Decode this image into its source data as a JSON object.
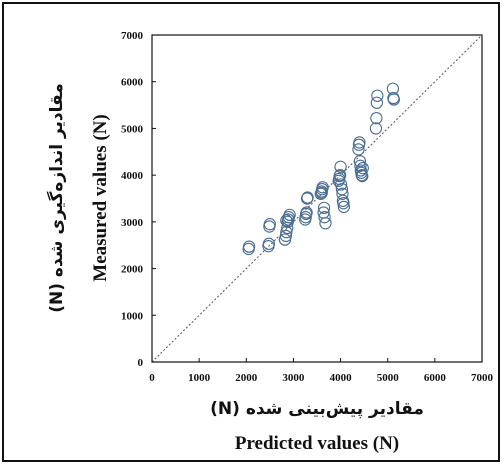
{
  "chart_data": {
    "type": "scatter",
    "xlabel_fa": "مقادیر پیش‌بینی شده (N)",
    "xlabel": "Predicted values (N)",
    "ylabel_fa": "مقادیر اندازه‌گیری شده (N)",
    "ylabel": "Measured values (N)",
    "xlim": [
      0,
      7000
    ],
    "ylim": [
      0,
      7000
    ],
    "x_ticks": [
      "0",
      "1000",
      "2000",
      "3000",
      "4000",
      "5000",
      "6000",
      "7000"
    ],
    "y_ticks": [
      "0",
      "1000",
      "2000",
      "3000",
      "4000",
      "5000",
      "6000",
      "7000"
    ],
    "grid": false,
    "reference_line": "y = x (dashed)",
    "colors": {
      "marker": "#4a6d92",
      "reference_line": "#555555",
      "axis": "#111111"
    },
    "points": [
      [
        2050,
        2420
      ],
      [
        2060,
        2470
      ],
      [
        2470,
        2480
      ],
      [
        2480,
        2530
      ],
      [
        2490,
        2900
      ],
      [
        2500,
        2950
      ],
      [
        2820,
        2620
      ],
      [
        2840,
        2700
      ],
      [
        2850,
        2780
      ],
      [
        2870,
        2870
      ],
      [
        2880,
        3000
      ],
      [
        2890,
        3050
      ],
      [
        2900,
        3100
      ],
      [
        2920,
        3150
      ],
      [
        2850,
        3030
      ],
      [
        3250,
        3050
      ],
      [
        3260,
        3100
      ],
      [
        3270,
        3170
      ],
      [
        3280,
        3200
      ],
      [
        3290,
        3500
      ],
      [
        3300,
        3520
      ],
      [
        3580,
        3600
      ],
      [
        3600,
        3650
      ],
      [
        3610,
        3700
      ],
      [
        3620,
        3740
      ],
      [
        3600,
        3620
      ],
      [
        3640,
        3200
      ],
      [
        3650,
        3300
      ],
      [
        3660,
        3100
      ],
      [
        3680,
        2970
      ],
      [
        3960,
        3880
      ],
      [
        3970,
        3920
      ],
      [
        3980,
        3980
      ],
      [
        3990,
        4000
      ],
      [
        4000,
        4180
      ],
      [
        4010,
        3800
      ],
      [
        4030,
        3700
      ],
      [
        4040,
        3600
      ],
      [
        4050,
        3450
      ],
      [
        4060,
        3400
      ],
      [
        4070,
        3320
      ],
      [
        4380,
        4550
      ],
      [
        4390,
        4650
      ],
      [
        4400,
        4700
      ],
      [
        4410,
        4300
      ],
      [
        4420,
        4200
      ],
      [
        4430,
        4100
      ],
      [
        4440,
        4050
      ],
      [
        4450,
        4000
      ],
      [
        4460,
        3980
      ],
      [
        4470,
        4150
      ],
      [
        4750,
        5000
      ],
      [
        4760,
        5220
      ],
      [
        4770,
        5550
      ],
      [
        4780,
        5700
      ],
      [
        5110,
        5850
      ],
      [
        5120,
        5650
      ],
      [
        5130,
        5620
      ]
    ]
  }
}
